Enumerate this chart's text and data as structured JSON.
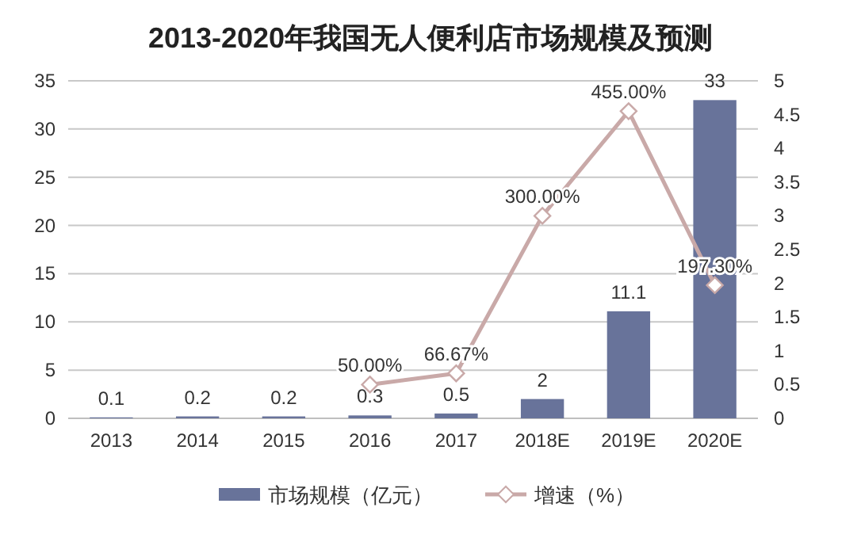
{
  "chart_data": {
    "type": "bar",
    "title": "2013-2020年我国无人便利店市场规模及预测",
    "categories": [
      "2013",
      "2014",
      "2015",
      "2016",
      "2017",
      "2018E",
      "2019E",
      "2020E"
    ],
    "series": [
      {
        "name": "市场规模（亿元）",
        "color": "#68739a",
        "values": [
          0.1,
          0.2,
          0.2,
          0.3,
          0.5,
          2,
          11.1,
          33
        ],
        "value_labels": [
          "0.1",
          "0.2",
          "0.2",
          "0.3",
          "0.5",
          "2",
          "11.1",
          "33"
        ]
      },
      {
        "name": "增速（%）",
        "type": "line",
        "axis": "y2",
        "color": "#c9a9a8",
        "marker": "diamond",
        "values": [
          null,
          null,
          null,
          0.5,
          0.6667,
          3.0,
          4.55,
          1.973
        ],
        "value_labels": [
          null,
          null,
          null,
          "50.00%",
          "66.67%",
          "300.00%",
          "455.00%",
          "197.30%"
        ]
      }
    ],
    "ylim": [
      0,
      35
    ],
    "yticks": [
      0,
      5,
      10,
      15,
      20,
      25,
      30,
      35
    ],
    "y2lim": [
      0,
      5
    ],
    "y2ticks": [
      0,
      0.5,
      1,
      1.5,
      2,
      2.5,
      3,
      3.5,
      4,
      4.5,
      5
    ],
    "grid": "y",
    "legend": "bottom"
  }
}
